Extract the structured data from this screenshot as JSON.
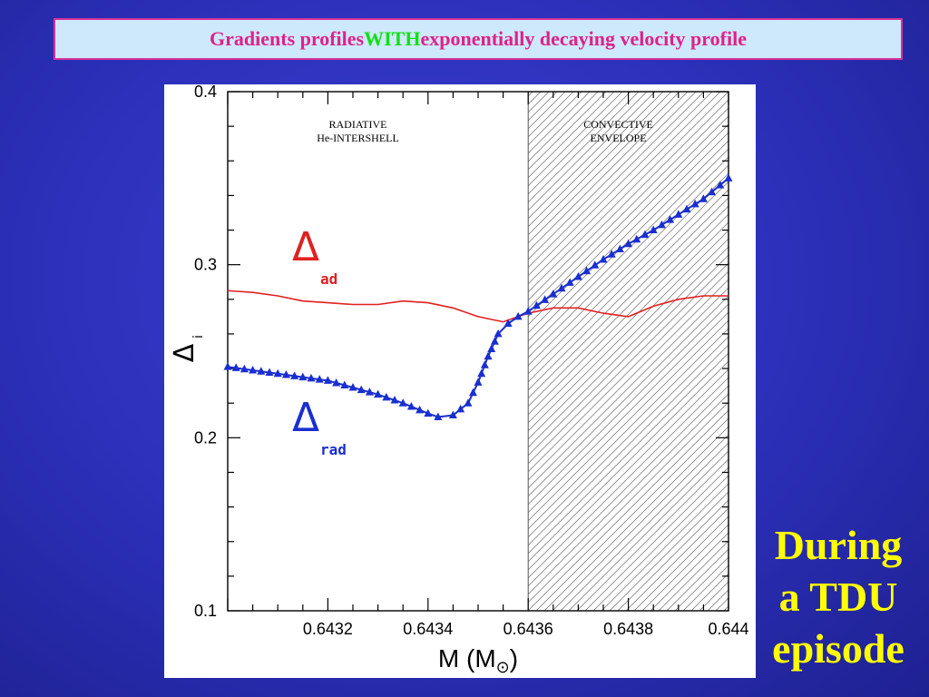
{
  "slide": {
    "title_part1": "Gradients profiles ",
    "title_highlight": "WITH",
    "title_part2": " exponentially decaying velocity profile",
    "caption_lines": [
      "During",
      "a TDU",
      "episode"
    ],
    "colors": {
      "title_text": "#e0218a",
      "title_highlight": "#12e012",
      "title_box_bg": "#cde9fb",
      "caption": "#ffff00",
      "background": "#2b2fb8"
    }
  },
  "chart_data": {
    "type": "line",
    "x_range": [
      0.643,
      0.644
    ],
    "ylim": [
      0.1,
      0.4
    ],
    "x_ticks": [
      0.6432,
      0.6434,
      0.6436,
      0.6438,
      0.644
    ],
    "x_tick_labels": [
      "0.6432",
      "0.6434",
      "0.6436",
      "0.6438",
      "0.644"
    ],
    "y_ticks": [
      0.1,
      0.2,
      0.3,
      0.4
    ],
    "y_tick_labels": [
      "0.1",
      "0.2",
      "0.3",
      "0.4"
    ],
    "xlabel": {
      "main": "M",
      "units": "(M",
      "units_close": ")"
    },
    "ylabel": {
      "main": "Δ",
      "sub": "i"
    },
    "region_boundary_x": 0.6436,
    "regions": [
      {
        "lines": [
          "RADIATIVE",
          "He-INTERSHELL"
        ],
        "x_center": 0.64326
      },
      {
        "lines": [
          "CONVECTIVE",
          "ENVELOPE"
        ],
        "x_center": 0.64378
      }
    ],
    "labels": {
      "ad": {
        "symbol": "Δ",
        "sub": "ad",
        "color": "#e02020"
      },
      "rad": {
        "symbol": "Δ",
        "sub": "rad",
        "color": "#1a2fd0"
      }
    },
    "series": [
      {
        "key": "ad",
        "color": "#e02020",
        "marker": "none",
        "x": [
          0.643,
          0.64305,
          0.6431,
          0.64315,
          0.6432,
          0.64325,
          0.6433,
          0.64335,
          0.6434,
          0.64345,
          0.6435,
          0.64355,
          0.6436,
          0.64365,
          0.6437,
          0.64375,
          0.6438,
          0.64385,
          0.6439,
          0.64395,
          0.644
        ],
        "y": [
          0.285,
          0.284,
          0.282,
          0.279,
          0.278,
          0.277,
          0.277,
          0.279,
          0.278,
          0.275,
          0.27,
          0.267,
          0.272,
          0.275,
          0.275,
          0.272,
          0.27,
          0.276,
          0.28,
          0.282,
          0.282
        ]
      },
      {
        "key": "rad",
        "color": "#1a2fd0",
        "marker": "triangle",
        "x": [
          0.643,
          0.64305,
          0.6431,
          0.64315,
          0.6432,
          0.64325,
          0.6433,
          0.64335,
          0.6434,
          0.64342,
          0.64345,
          0.64348,
          0.6435,
          0.64352,
          0.64354,
          0.64356,
          0.64358,
          0.6436,
          0.64365,
          0.6437,
          0.64375,
          0.6438,
          0.64385,
          0.6439,
          0.64395,
          0.644
        ],
        "y": [
          0.241,
          0.239,
          0.237,
          0.235,
          0.233,
          0.229,
          0.225,
          0.22,
          0.214,
          0.212,
          0.213,
          0.22,
          0.232,
          0.247,
          0.26,
          0.266,
          0.27,
          0.273,
          0.283,
          0.293,
          0.303,
          0.312,
          0.32,
          0.329,
          0.338,
          0.35
        ]
      }
    ]
  }
}
